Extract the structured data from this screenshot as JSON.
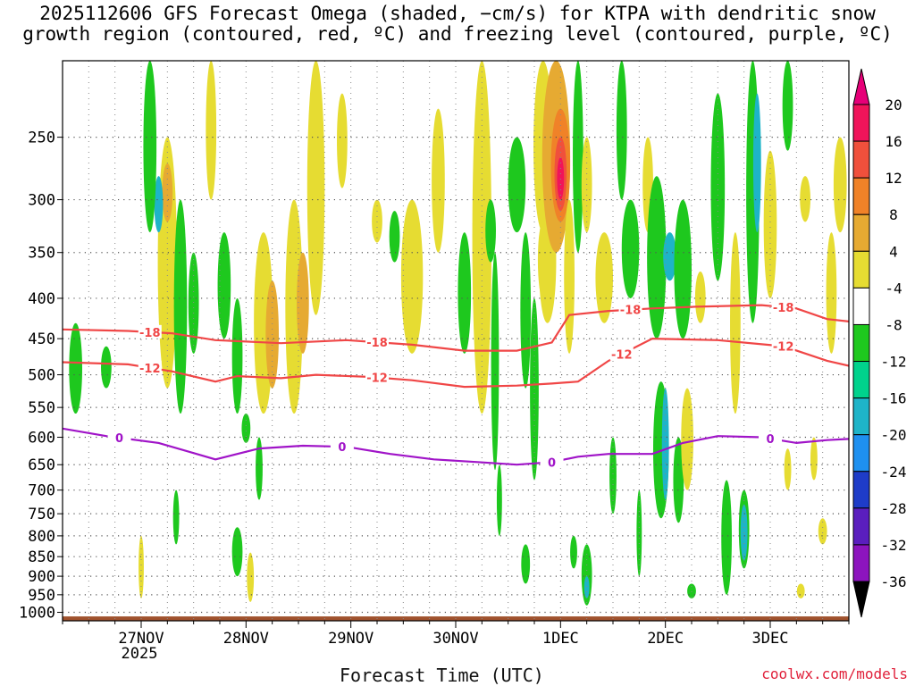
{
  "chart_data": {
    "type": "heatmap",
    "title_line1": "2025112606 GFS Forecast Omega (shaded, −cm/s) for KTPA with dendritic snow",
    "title_line2": "growth region (contoured, red, ºC) and freezing level (contoured, purple, ºC)",
    "xlabel": "Forecast Time (UTC)",
    "ylabel": "",
    "y_ticks": [
      250,
      300,
      350,
      400,
      450,
      500,
      550,
      600,
      650,
      700,
      750,
      800,
      850,
      900,
      950,
      1000
    ],
    "y_range_hpa": [
      200,
      1025
    ],
    "x_ticks": [
      {
        "label": "27NOV",
        "sub": "2025",
        "hour": 18
      },
      {
        "label": "28NOV",
        "sub": "",
        "hour": 42
      },
      {
        "label": "29NOV",
        "sub": "",
        "hour": 66
      },
      {
        "label": "30NOV",
        "sub": "",
        "hour": 90
      },
      {
        "label": "1DEC",
        "sub": "",
        "hour": 114
      },
      {
        "label": "2DEC",
        "sub": "",
        "hour": 138
      },
      {
        "label": "3DEC",
        "sub": "",
        "hour": 162
      }
    ],
    "x_range_hours": [
      0,
      180
    ],
    "colorbar": {
      "labels": [
        "20",
        "16",
        "12",
        "8",
        "4",
        "-4",
        "-8",
        "-12",
        "-16",
        "-20",
        "-24",
        "-28",
        "-32",
        "-36"
      ],
      "colors": [
        "#ffffff",
        "#f0145a",
        "#f0503c",
        "#f08228",
        "#e6aa32",
        "#e6dc32",
        "#ffffff",
        "#1ec81e",
        "#00d28c",
        "#1eb4c8",
        "#1e90f0",
        "#1e3cc8",
        "#5a1ebe",
        "#8c14be",
        "#aaaaaa"
      ],
      "top_arrow_color": "#e60078",
      "bottom_arrow_color": "#000000"
    },
    "contours": [
      {
        "name": "-18",
        "color": "#f04646",
        "label_hours": [
          20,
          72,
          130,
          165
        ],
        "points": [
          [
            0,
            438
          ],
          [
            15,
            440
          ],
          [
            25,
            443
          ],
          [
            35,
            452
          ],
          [
            50,
            456
          ],
          [
            65,
            452
          ],
          [
            80,
            458
          ],
          [
            92,
            466
          ],
          [
            104,
            466
          ],
          [
            112,
            455
          ],
          [
            116,
            420
          ],
          [
            125,
            415
          ],
          [
            135,
            412
          ],
          [
            145,
            410
          ],
          [
            160,
            408
          ],
          [
            168,
            412
          ],
          [
            175,
            425
          ],
          [
            180,
            428
          ]
        ]
      },
      {
        "name": "-12",
        "color": "#f04646",
        "label_hours": [
          20,
          72,
          128,
          165
        ],
        "points": [
          [
            0,
            482
          ],
          [
            15,
            485
          ],
          [
            25,
            495
          ],
          [
            35,
            510
          ],
          [
            40,
            502
          ],
          [
            50,
            505
          ],
          [
            58,
            500
          ],
          [
            70,
            503
          ],
          [
            80,
            508
          ],
          [
            92,
            518
          ],
          [
            104,
            516
          ],
          [
            112,
            513
          ],
          [
            118,
            510
          ],
          [
            125,
            480
          ],
          [
            135,
            450
          ],
          [
            150,
            452
          ],
          [
            165,
            460
          ],
          [
            175,
            480
          ],
          [
            180,
            487
          ]
        ]
      },
      {
        "name": "0",
        "color": "#a014c8",
        "label_hours": [
          13,
          64,
          112,
          162
        ],
        "points": [
          [
            0,
            585
          ],
          [
            10,
            598
          ],
          [
            22,
            610
          ],
          [
            35,
            640
          ],
          [
            45,
            620
          ],
          [
            55,
            615
          ],
          [
            65,
            617
          ],
          [
            75,
            630
          ],
          [
            85,
            640
          ],
          [
            95,
            645
          ],
          [
            104,
            650
          ],
          [
            112,
            645
          ],
          [
            118,
            635
          ],
          [
            125,
            630
          ],
          [
            135,
            630
          ],
          [
            142,
            610
          ],
          [
            150,
            598
          ],
          [
            160,
            600
          ],
          [
            168,
            610
          ],
          [
            175,
            605
          ],
          [
            180,
            603
          ]
        ]
      }
    ]
  },
  "watermark": "coolwx.com/models"
}
